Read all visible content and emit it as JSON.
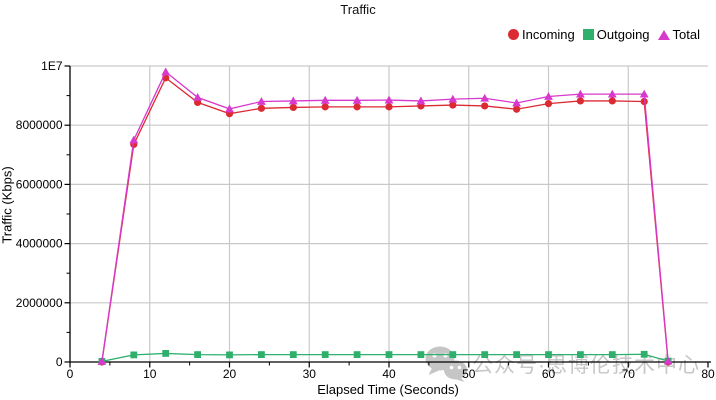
{
  "header": {
    "title": "Traffic"
  },
  "legend": [
    {
      "label": "Incoming",
      "marker": "circle",
      "color": "#dc2a33"
    },
    {
      "label": "Outgoing",
      "marker": "square",
      "color": "#2eb06c"
    },
    {
      "label": "Total",
      "marker": "triangle",
      "color": "#d838cc"
    }
  ],
  "watermark": {
    "icon": "wechat-icon",
    "text": "公众号·思博伦技术中心",
    "color": "#c6c6c6"
  },
  "chart_data": {
    "type": "line",
    "title": "Traffic",
    "xlabel": "Elapsed Time (Seconds)",
    "ylabel": "Traffic (Kbps)",
    "xlim": [
      0,
      80
    ],
    "ylim": [
      0,
      10000000
    ],
    "x_ticks": [
      0,
      10,
      20,
      30,
      40,
      50,
      60,
      70,
      80
    ],
    "y_ticks": [
      0,
      2000000,
      4000000,
      6000000,
      8000000,
      10000000
    ],
    "y_tick_labels": [
      "0",
      "2000000",
      "4000000",
      "6000000",
      "8000000",
      "1E7"
    ],
    "grid": true,
    "grid_color": "#c9c9c9",
    "axis_color": "#000000",
    "legend_position": "top-right",
    "x": [
      4,
      8,
      12,
      16,
      20,
      24,
      28,
      32,
      36,
      40,
      44,
      48,
      52,
      56,
      60,
      64,
      68,
      72,
      75
    ],
    "series": [
      {
        "name": "Incoming",
        "color": "#dc2a33",
        "marker": "circle",
        "values": [
          0,
          7350000,
          9600000,
          8770000,
          8390000,
          8570000,
          8600000,
          8620000,
          8620000,
          8620000,
          8650000,
          8680000,
          8650000,
          8540000,
          8730000,
          8820000,
          8820000,
          8800000,
          0
        ]
      },
      {
        "name": "Outgoing",
        "color": "#2eb06c",
        "marker": "square",
        "values": [
          20000,
          240000,
          290000,
          250000,
          240000,
          250000,
          250000,
          250000,
          250000,
          250000,
          250000,
          250000,
          250000,
          250000,
          250000,
          250000,
          250000,
          260000,
          30000
        ]
      },
      {
        "name": "Total",
        "color": "#d838cc",
        "marker": "triangle",
        "values": [
          20000,
          7500000,
          9800000,
          8940000,
          8550000,
          8800000,
          8820000,
          8840000,
          8840000,
          8850000,
          8820000,
          8880000,
          8910000,
          8750000,
          8970000,
          9050000,
          9050000,
          9050000,
          30000
        ]
      }
    ]
  }
}
